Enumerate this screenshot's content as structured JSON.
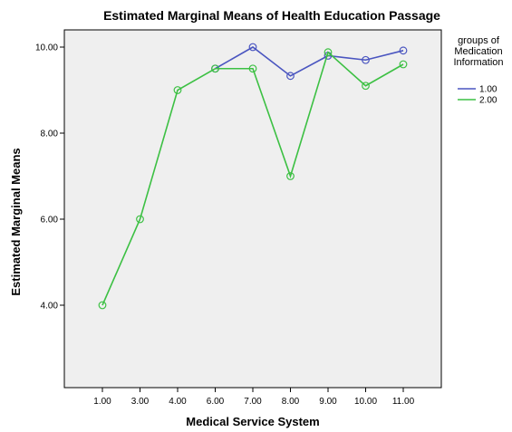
{
  "chart_data": {
    "type": "line",
    "title": "Estimated Marginal Means of Health Education Passage",
    "xlabel": "Medical Service System",
    "ylabel": "Estimated Marginal Means",
    "categories": [
      "1.00",
      "3.00",
      "4.00",
      "6.00",
      "7.00",
      "8.00",
      "9.00",
      "10.00",
      "11.00"
    ],
    "yticks": [
      "4.00",
      "6.00",
      "8.00",
      "10.00"
    ],
    "ylim": [
      2.0,
      10.5
    ],
    "grid": false,
    "legend": {
      "title_lines": [
        "groups of",
        "Medication",
        "Information"
      ],
      "placement": "right"
    },
    "series": [
      {
        "name": "1.00",
        "color": "#4a55c0",
        "values": [
          null,
          null,
          null,
          9.5,
          10.0,
          9.33,
          9.8,
          9.7,
          9.92
        ]
      },
      {
        "name": "2.00",
        "color": "#3cc043",
        "values": [
          4.0,
          6.0,
          9.0,
          9.5,
          9.5,
          7.0,
          9.88,
          9.1,
          9.6
        ]
      }
    ],
    "colors": {
      "plot_background": "#efefef",
      "axis": "#000000"
    }
  }
}
